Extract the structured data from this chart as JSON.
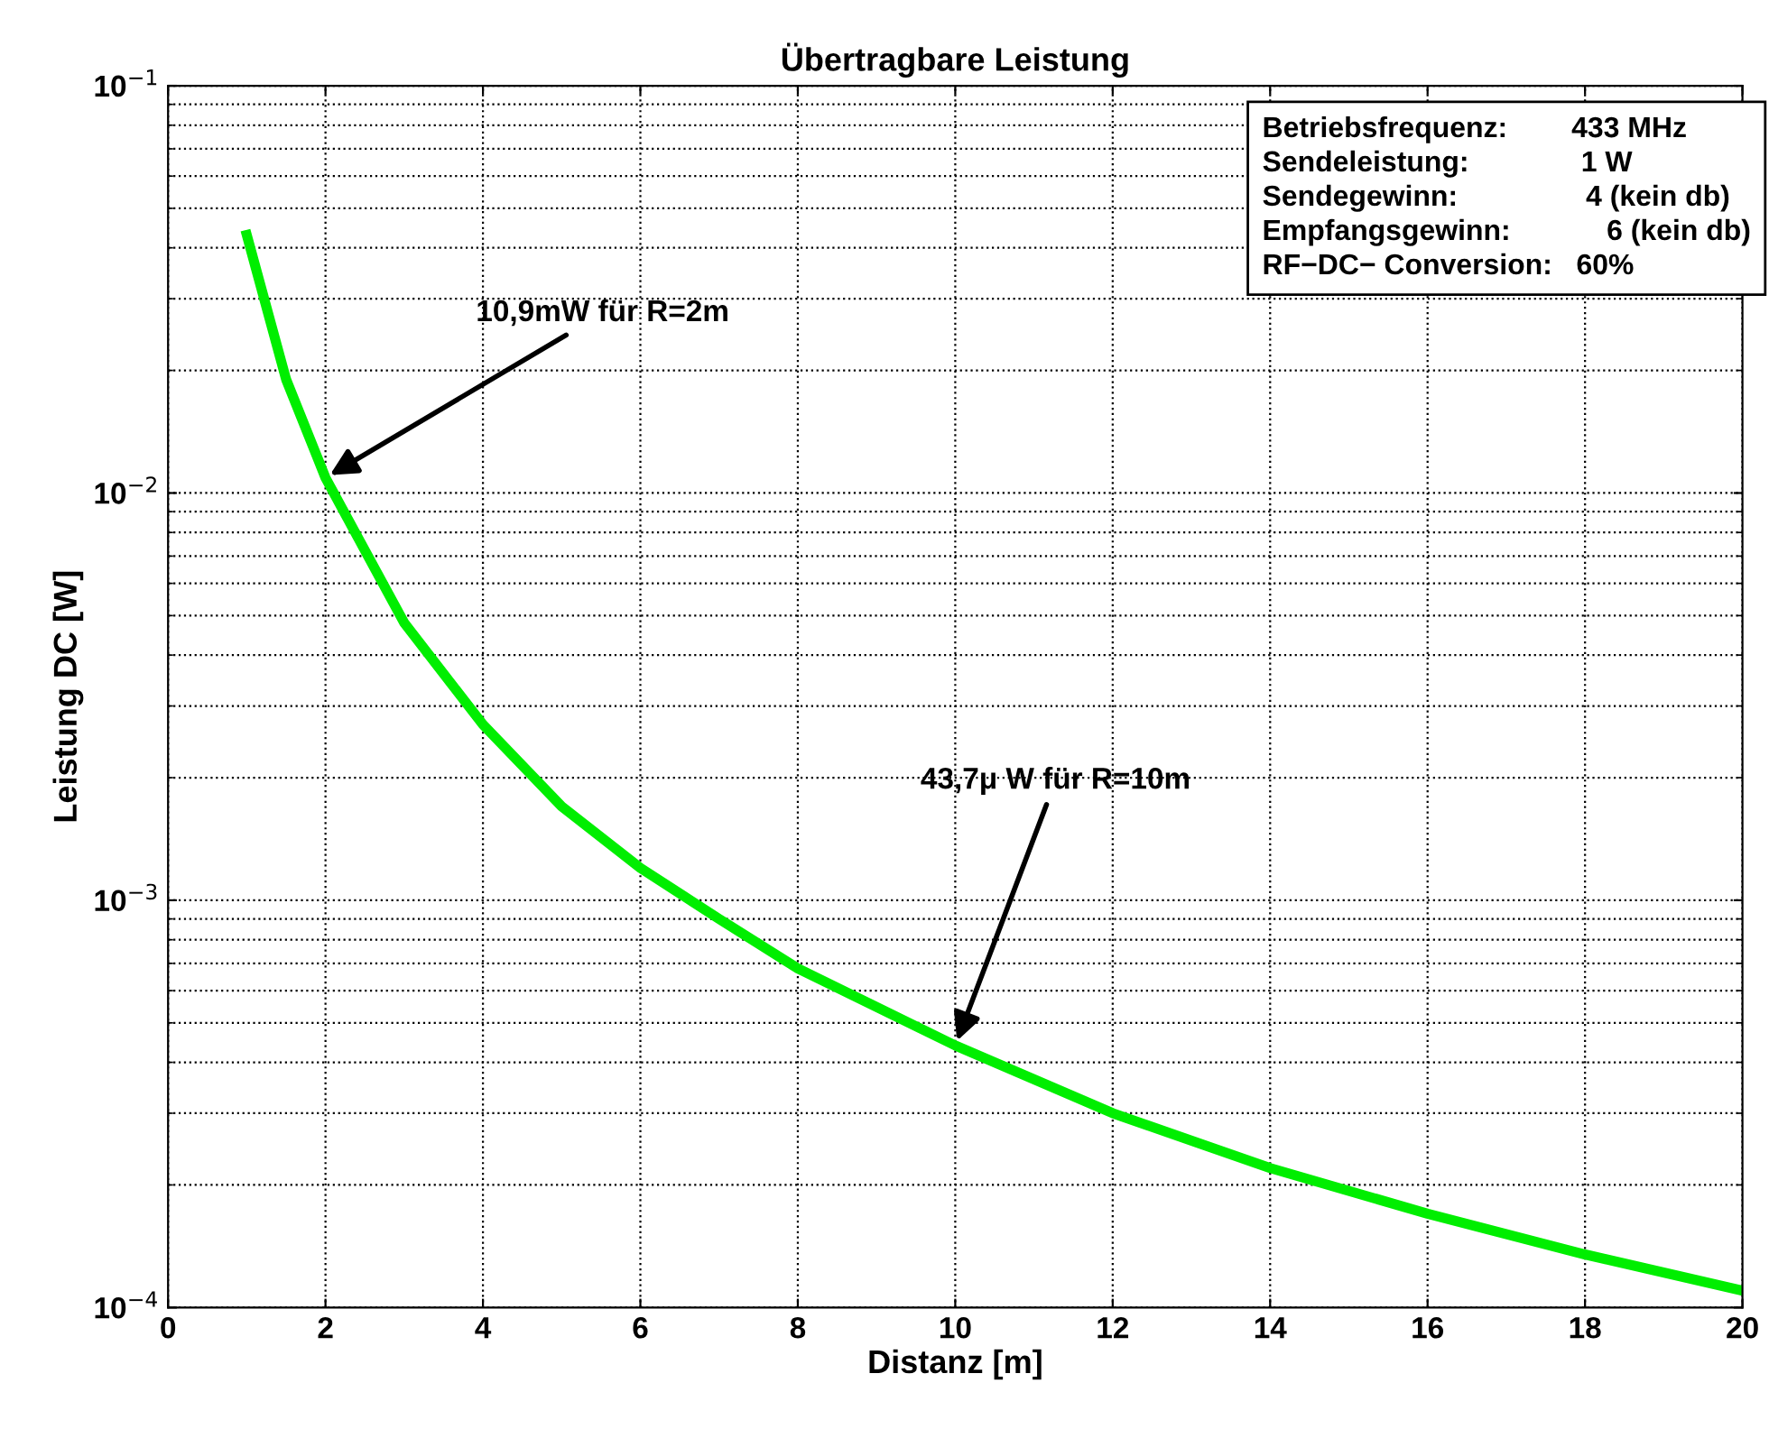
{
  "chart_data": {
    "type": "line",
    "title": "Übertragbare Leistung",
    "xlabel": "Distanz [m]",
    "ylabel": "Leistung DC [W]",
    "x": [
      1,
      1.5,
      2,
      3,
      4,
      5,
      6,
      7,
      8,
      10,
      12,
      14,
      16,
      18,
      20
    ],
    "series": [
      {
        "color": "#00ee00",
        "values": [
          0.043,
          0.019,
          0.0109,
          0.0048,
          0.0027,
          0.0017,
          0.0012,
          0.0009,
          0.00068,
          0.00044,
          0.0003,
          0.00022,
          0.00017,
          0.000135,
          0.00011
        ]
      }
    ],
    "log": "y",
    "xlim": [
      0,
      20
    ],
    "xticks": [
      0,
      2,
      4,
      6,
      8,
      10,
      12,
      14,
      16,
      18,
      20
    ],
    "ylim": [
      0.0001,
      0.1
    ],
    "yticks": [
      {
        "value": 0.0001,
        "label": "10$^{−4}$"
      },
      {
        "value": 0.001,
        "label": "10$^{−3}$"
      },
      {
        "value": 0.01,
        "label": "10$^{−2}$"
      },
      {
        "value": 0.1,
        "label": "10$^{−1}$"
      }
    ],
    "grid": true,
    "line_style": "solid",
    "marker": "none",
    "annotations": [
      "Betriebsfrequenz:        433 MHz",
      "Sendeleistung:              1 W",
      "Sendegewinn:                4 (kein db)",
      "Empfangsgewinn:            6 (kein db)",
      "RF−DC− Conversion:   60%",
      {
        "text": "10,9mW für R=2m",
        "x": 2,
        "y": 0.0109
      },
      {
        "text": "43,7μ W für R=10m",
        "x": 10,
        "y": 0.00044
      }
    ]
  }
}
